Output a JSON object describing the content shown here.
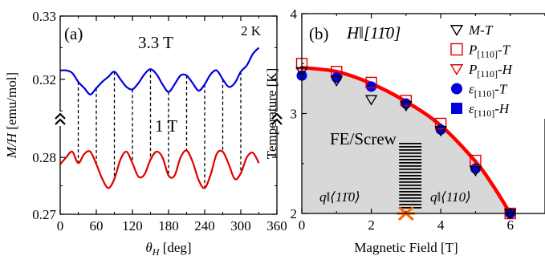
{
  "chart_data": [
    {
      "type": "line",
      "panel_label": "(a)",
      "temperature_label": "2 K",
      "xlabel": "θH [deg]",
      "ylabel": "M/H [emu/mol]",
      "x_ticks": [
        0,
        60,
        120,
        180,
        240,
        300,
        360
      ],
      "y_ticks_upper": [
        "0.32",
        "0.33"
      ],
      "y_ticks_lower": [
        "0.27",
        "0.28"
      ],
      "axis_break_symbol": "≈",
      "xlim": [
        0,
        360
      ],
      "ylim_lower": [
        0.27,
        0.2865
      ],
      "ylim_upper": [
        0.3135,
        0.33
      ],
      "dashed_guides_x": [
        30,
        60,
        90,
        120,
        150,
        180,
        210,
        240,
        270,
        300
      ],
      "series": [
        {
          "name": "3.3 T",
          "color": "#0000e0",
          "axis": "upper",
          "x": [
            0,
            10,
            20,
            30,
            40,
            50,
            60,
            70,
            80,
            90,
            100,
            110,
            120,
            130,
            140,
            150,
            160,
            170,
            180,
            190,
            200,
            210,
            220,
            230,
            240,
            250,
            260,
            270,
            280,
            290,
            300,
            310,
            320,
            330
          ],
          "y": [
            0.3214,
            0.3214,
            0.321,
            0.3196,
            0.3186,
            0.3176,
            0.3186,
            0.3196,
            0.3204,
            0.3212,
            0.32,
            0.3188,
            0.3184,
            0.3194,
            0.3208,
            0.3216,
            0.3208,
            0.3192,
            0.318,
            0.3192,
            0.3206,
            0.3206,
            0.3194,
            0.3182,
            0.3192,
            0.3208,
            0.3214,
            0.32,
            0.3188,
            0.3194,
            0.3212,
            0.3222,
            0.324,
            0.325
          ]
        },
        {
          "name": "1 T",
          "color": "#e00000",
          "axis": "lower",
          "x": [
            0,
            10,
            20,
            30,
            40,
            50,
            60,
            70,
            80,
            90,
            100,
            110,
            120,
            130,
            140,
            150,
            160,
            170,
            180,
            190,
            200,
            210,
            220,
            230,
            240,
            250,
            260,
            270,
            280,
            290,
            300,
            310,
            320,
            330
          ],
          "y": [
            0.2788,
            0.28,
            0.281,
            0.279,
            0.2806,
            0.281,
            0.2788,
            0.2762,
            0.2746,
            0.2762,
            0.2796,
            0.281,
            0.279,
            0.2766,
            0.277,
            0.2796,
            0.281,
            0.28,
            0.2768,
            0.2768,
            0.28,
            0.2812,
            0.2792,
            0.276,
            0.2746,
            0.277,
            0.2806,
            0.281,
            0.2788,
            0.2762,
            0.2772,
            0.28,
            0.2808,
            0.279
          ]
        }
      ]
    },
    {
      "type": "scatter",
      "panel_label": "(b)",
      "field_direction_label": "H‖[11̄0]",
      "xlabel": "Magnetic Field [T]",
      "ylabel": "Temperature [K]",
      "xlim": [
        0,
        7
      ],
      "ylim": [
        2,
        4
      ],
      "x_ticks": [
        0,
        2,
        4,
        6
      ],
      "y_ticks": [
        2,
        3,
        4
      ],
      "phase_label": "FE/Screw",
      "region_labels": [
        "q‖⟨11̄0⟩",
        "q‖⟨110⟩"
      ],
      "phase_boundary": {
        "color": "#ff0000",
        "x": [
          0,
          1,
          2,
          3,
          4,
          5,
          5.5,
          6
        ],
        "y": [
          3.46,
          3.42,
          3.3,
          3.12,
          2.88,
          2.52,
          2.28,
          2.0
        ]
      },
      "hatch_region": {
        "x": 2.8,
        "y_range": [
          2.0,
          2.7
        ]
      },
      "cross_marker": {
        "x": 3.0,
        "y": 2.0,
        "color": "#ff6600"
      },
      "series": [
        {
          "name": "M-T",
          "marker": "triangle-down-open",
          "color": "#000000",
          "x": [
            0,
            1,
            2,
            3,
            4,
            5,
            6
          ],
          "y": [
            3.42,
            3.33,
            3.14,
            3.08,
            2.83,
            2.43,
            2.0
          ]
        },
        {
          "name": "P[110]-T",
          "marker": "square-open",
          "color": "#e00000",
          "x": [
            0,
            1,
            2,
            3,
            4,
            5,
            6
          ],
          "y": [
            3.5,
            3.42,
            3.31,
            3.13,
            2.9,
            2.53,
            2.0
          ]
        },
        {
          "name": "P[110]-H",
          "marker": "triangle-down-open",
          "color": "#e00000",
          "x": [],
          "y": []
        },
        {
          "name": "ε[110]-T",
          "marker": "circle-filled",
          "color": "#0000e0",
          "x": [
            0,
            1,
            2,
            3,
            4,
            5,
            6
          ],
          "y": [
            3.38,
            3.36,
            3.27,
            3.1,
            2.84,
            2.45,
            2.0
          ]
        },
        {
          "name": "ε[110]-H",
          "marker": "square-filled",
          "color": "#0000e0",
          "x": [],
          "y": []
        }
      ]
    }
  ]
}
